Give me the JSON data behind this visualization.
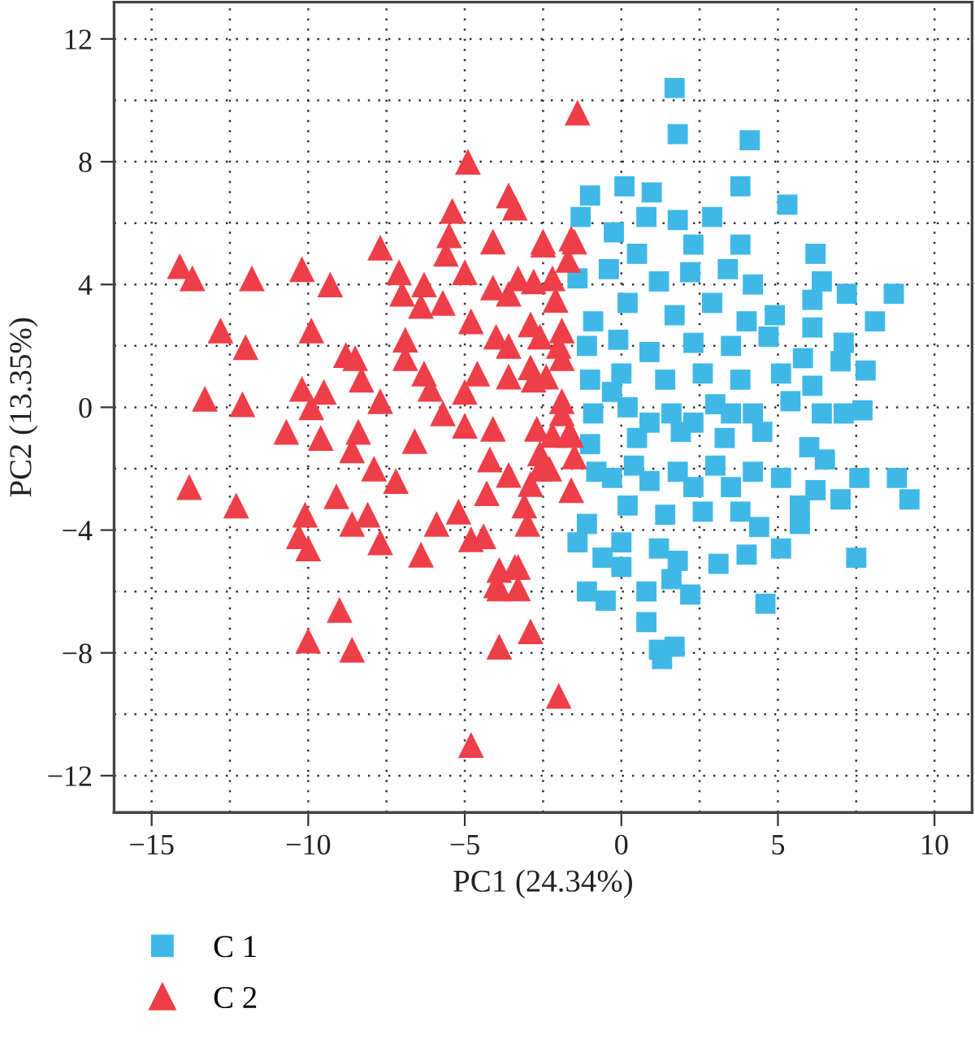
{
  "chart_data": {
    "type": "scatter",
    "xlabel": "PC1 (24.34%)",
    "ylabel": "PC2 (13.35%)",
    "xlim": [
      -16.2,
      11.2
    ],
    "ylim": [
      -13.2,
      13.2
    ],
    "xticks": [
      {
        "value": -15,
        "label": "−15"
      },
      {
        "value": -10,
        "label": "−10"
      },
      {
        "value": -5,
        "label": "−5"
      },
      0,
      5,
      10
    ],
    "yticks": [
      {
        "value": -12,
        "label": "−12"
      },
      {
        "value": -8,
        "label": "−8"
      },
      {
        "value": -4,
        "label": "−4"
      },
      0,
      4,
      8,
      12
    ],
    "grid": true,
    "legend": "bottom left",
    "series": [
      {
        "name": "C 1",
        "color": "#3fb8e8",
        "marker": "square",
        "x": [
          1.7,
          1.8,
          4.1,
          -1.0,
          0.1,
          0.97,
          0.8,
          3.8,
          5.3,
          -1.3,
          -0.24,
          1.8,
          2.9,
          3.8,
          2.3,
          6.2,
          -1.4,
          -0.4,
          0.5,
          1.2,
          2.2,
          3.4,
          4.2,
          6.4,
          7.2,
          8.7,
          6.1,
          8.1,
          -0.9,
          0.2,
          1.7,
          2.9,
          4.0,
          4.9,
          6.1,
          7.1,
          -1.1,
          -0.1,
          0.9,
          2.3,
          3.5,
          4.7,
          5.8,
          7.0,
          7.8,
          -1.0,
          0.0,
          1.4,
          2.6,
          3.8,
          5.1,
          6.1,
          -0.9,
          0.2,
          1.6,
          3.0,
          4.2,
          5.4,
          6.4,
          7.1,
          7.7,
          -1.0,
          0.5,
          1.9,
          3.3,
          4.5,
          6.0,
          6.5,
          -0.8,
          0.4,
          1.8,
          3.0,
          4.2,
          5.1,
          7.6,
          8.8,
          9.2,
          6.2,
          7.0,
          5.7,
          5.7,
          -1.1,
          0.2,
          1.4,
          2.6,
          3.8,
          0.0,
          1.2,
          3.1,
          4.0,
          5.1,
          7.5,
          -1.4,
          -0.6,
          0.0,
          -1.1,
          -0.5,
          0.8,
          1.6,
          2.2,
          4.6,
          0.8,
          1.2,
          1.7,
          1.3,
          -0.3,
          0.9,
          2.3,
          3.5,
          0.9,
          2.3,
          3.5,
          -0.3,
          1.8,
          4.4
        ],
        "values": [
          10.4,
          8.9,
          8.7,
          6.9,
          7.2,
          7.0,
          6.2,
          7.2,
          6.6,
          6.2,
          5.7,
          6.1,
          6.2,
          5.3,
          5.3,
          5.0,
          4.2,
          4.5,
          5.0,
          4.1,
          4.4,
          4.5,
          4.0,
          4.1,
          3.7,
          3.7,
          3.5,
          2.8,
          2.8,
          3.4,
          3.0,
          3.4,
          2.8,
          3.0,
          2.6,
          2.1,
          2.0,
          2.2,
          1.8,
          2.1,
          2.0,
          2.3,
          1.6,
          1.5,
          1.2,
          0.9,
          1.1,
          0.9,
          1.1,
          0.9,
          1.1,
          0.7,
          -0.2,
          0.0,
          -0.2,
          0.1,
          -0.2,
          0.2,
          -0.2,
          -0.2,
          -0.1,
          -1.2,
          -1.0,
          -0.8,
          -1.0,
          -0.8,
          -1.3,
          -1.7,
          -2.1,
          -1.9,
          -2.1,
          -1.9,
          -2.1,
          -2.3,
          -2.3,
          -2.3,
          -3.0,
          -2.7,
          -3.0,
          -3.2,
          -3.8,
          -3.8,
          -3.2,
          -3.5,
          -3.4,
          -3.4,
          -4.4,
          -4.6,
          -5.1,
          -4.8,
          -4.6,
          -4.9,
          -4.4,
          -4.9,
          -5.2,
          -6.0,
          -6.3,
          -6.0,
          -5.6,
          -6.1,
          -6.4,
          -7.0,
          -7.9,
          -7.8,
          -8.2,
          0.5,
          -0.5,
          -0.5,
          -0.2,
          -2.4,
          -2.6,
          -2.6,
          -2.3,
          -5.0,
          -3.9
        ]
      },
      {
        "name": "C 2",
        "color": "#ee3e48",
        "marker": "triangle",
        "x": [
          -14.1,
          -13.7,
          -11.8,
          -10.2,
          -9.3,
          -12.8,
          -12.0,
          -9.9,
          -13.3,
          -12.1,
          -10.2,
          -9.5,
          -9.9,
          -8.8,
          -8.5,
          -8.3,
          -7.7,
          -10.7,
          -9.6,
          -8.4,
          -8.6,
          -7.9,
          -7.2,
          -13.8,
          -12.3,
          -9.1,
          -10.1,
          -10.3,
          -10.0,
          -8.6,
          -8.1,
          -7.7,
          -6.4,
          -9.0,
          -10.0,
          -8.6,
          -5.9,
          -5.2,
          -4.8,
          -4.4,
          -3.9,
          -3.9,
          -3.3,
          -3.3,
          -3.9,
          -2.9,
          -2.0,
          -4.8,
          -4.9,
          -3.6,
          -3.4,
          -5.4,
          -5.5,
          -4.1,
          -5.6,
          -5.0,
          -7.7,
          -7.1,
          -7.0,
          -6.3,
          -6.4,
          -5.7,
          -6.9,
          -6.9,
          -6.3,
          -6.1,
          -5.7,
          -6.6,
          -5.0,
          -4.6,
          -4.8,
          -4.1,
          -3.6,
          -4.0,
          -3.6,
          -2.9,
          -3.3,
          -2.8,
          -2.5,
          -2.1,
          -2.9,
          -2.4,
          -3.6,
          -2.0,
          -1.9,
          -2.7,
          -4.1,
          -5.0,
          -2.6,
          -1.7,
          -4.2,
          -3.6,
          -4.3,
          -2.9,
          -2.3,
          -1.6,
          -3.1,
          -3.0,
          -1.4,
          -1.6,
          -1.7,
          -2.2,
          -1.5,
          -2.5,
          -1.9,
          -2.6,
          -1.9,
          -2.8,
          -1.9,
          -2.2,
          -1.6,
          -1.5,
          -2.6,
          -3.4,
          -4.0
        ],
        "values": [
          4.6,
          4.2,
          4.2,
          4.5,
          4.0,
          2.5,
          1.96,
          2.5,
          0.28,
          0.1,
          0.6,
          0.5,
          0.0,
          1.7,
          1.6,
          0.9,
          0.2,
          -0.8,
          -1.0,
          -0.8,
          -1.4,
          -2.0,
          -2.4,
          -2.6,
          -3.2,
          -2.9,
          -3.5,
          -4.2,
          -4.6,
          -3.8,
          -3.5,
          -4.4,
          -4.8,
          -6.6,
          -7.6,
          -7.9,
          -3.8,
          -3.4,
          -4.3,
          -4.2,
          -5.3,
          -5.9,
          -5.2,
          -5.9,
          -7.8,
          -7.3,
          -9.4,
          -11.0,
          8.0,
          6.9,
          6.5,
          6.4,
          5.6,
          5.4,
          5.0,
          4.4,
          5.2,
          4.4,
          3.7,
          4.0,
          3.3,
          3.4,
          2.2,
          1.6,
          1.1,
          0.6,
          -0.2,
          -1.1,
          0.5,
          1.1,
          2.8,
          3.9,
          3.7,
          2.3,
          2.0,
          2.7,
          4.2,
          4.1,
          5.4,
          3.5,
          1.3,
          1.0,
          1.0,
          2.0,
          -0.2,
          -0.7,
          -0.7,
          -0.6,
          -1.5,
          -0.9,
          -1.7,
          -2.2,
          -2.8,
          -2.5,
          -2.0,
          -2.7,
          -3.2,
          -3.8,
          9.6,
          5.5,
          4.8,
          4.2,
          5.4,
          5.3,
          2.5,
          2.3,
          1.6,
          0.9,
          0.2,
          -0.9,
          -0.9,
          -1.6,
          -2.0,
          -5.2,
          -5.8
        ]
      }
    ]
  }
}
